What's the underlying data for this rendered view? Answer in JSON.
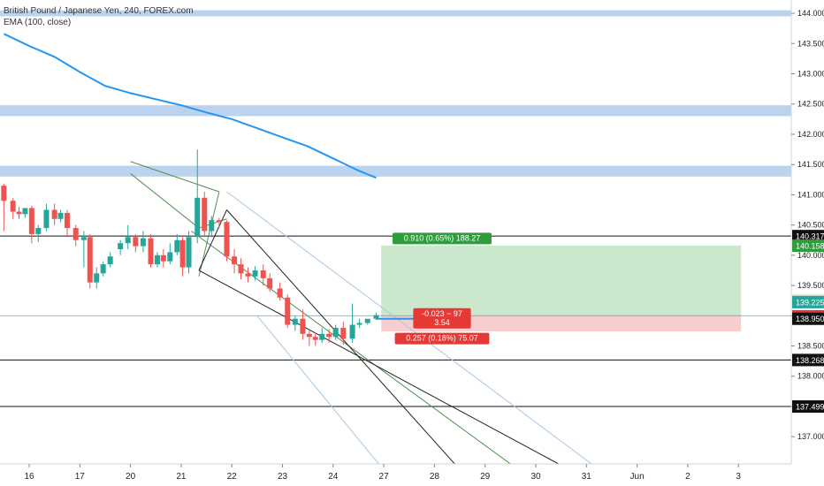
{
  "chart": {
    "symbol_line": "British Pound / Japanese Yen, 240, FOREX.com",
    "indicator_line": "EMA (100, close)"
  },
  "colors": {
    "bull": "#26a69a",
    "bear": "#ef5350",
    "ema": "#2196f3",
    "zone": "#bcd3f0",
    "profit": "#c8e6c9",
    "loss": "#f8caca",
    "channel_dark": "#222222",
    "channel_green": "#4f8f4f",
    "channel_light": "#a9c6e6",
    "axis_text": "#222222"
  },
  "chart_data": {
    "type": "candlestick",
    "title": "British Pound / Japanese Yen, 240, FOREX.com",
    "ylim": [
      136.55,
      144.22
    ],
    "y_ticks": [
      137.0,
      137.5,
      138.0,
      138.5,
      139.0,
      139.5,
      140.0,
      140.5,
      141.0,
      141.5,
      142.0,
      142.5,
      143.0,
      143.5,
      144.0
    ],
    "y_tick_labels": [
      "137.000",
      "137.500",
      "138.000",
      "138.500",
      "139.000",
      "139.500",
      "140.000",
      "140.500",
      "141.000",
      "141.500",
      "142.000",
      "142.500",
      "143.000",
      "143.500",
      "144.000"
    ],
    "x_ticks": [
      {
        "label": "16",
        "x": 0.5
      },
      {
        "label": "17",
        "x": 1.5
      },
      {
        "label": "20",
        "x": 2.5
      },
      {
        "label": "21",
        "x": 3.5
      },
      {
        "label": "22",
        "x": 4.5
      },
      {
        "label": "23",
        "x": 5.5
      },
      {
        "label": "24",
        "x": 6.5
      },
      {
        "label": "27",
        "x": 7.5
      },
      {
        "label": "28",
        "x": 8.5
      },
      {
        "label": "29",
        "x": 9.5
      },
      {
        "label": "30",
        "x": 10.5
      },
      {
        "label": "31",
        "x": 11.5
      },
      {
        "label": "Jun",
        "x": 12.5
      },
      {
        "label": "2",
        "x": 13.5
      },
      {
        "label": "3",
        "x": 14.5
      }
    ],
    "candles": [
      {
        "x": 0.0,
        "o": 141.15,
        "h": 141.18,
        "c": 140.9,
        "l": 140.4
      },
      {
        "x": 0.18,
        "o": 140.9,
        "h": 140.95,
        "c": 140.72,
        "l": 140.6
      },
      {
        "x": 0.3,
        "o": 140.72,
        "h": 140.8,
        "c": 140.68,
        "l": 140.6
      },
      {
        "x": 0.42,
        "o": 140.68,
        "h": 140.75,
        "c": 140.78,
        "l": 140.62
      },
      {
        "x": 0.55,
        "o": 140.78,
        "h": 140.82,
        "c": 140.35,
        "l": 140.2
      },
      {
        "x": 0.68,
        "o": 140.35,
        "h": 140.5,
        "c": 140.45,
        "l": 140.22
      },
      {
        "x": 0.84,
        "o": 140.45,
        "h": 140.85,
        "c": 140.75,
        "l": 140.4
      },
      {
        "x": 1.0,
        "o": 140.75,
        "h": 140.85,
        "c": 140.6,
        "l": 140.5
      },
      {
        "x": 1.12,
        "o": 140.6,
        "h": 140.75,
        "c": 140.7,
        "l": 140.55
      },
      {
        "x": 1.25,
        "o": 140.7,
        "h": 140.75,
        "c": 140.45,
        "l": 140.3
      },
      {
        "x": 1.42,
        "o": 140.45,
        "h": 140.5,
        "c": 140.25,
        "l": 140.15
      },
      {
        "x": 1.58,
        "o": 140.25,
        "h": 140.4,
        "c": 140.3,
        "l": 139.8
      },
      {
        "x": 1.7,
        "o": 140.3,
        "h": 140.35,
        "c": 139.55,
        "l": 139.45
      },
      {
        "x": 1.83,
        "o": 139.55,
        "h": 139.8,
        "c": 139.7,
        "l": 139.45
      },
      {
        "x": 1.96,
        "o": 139.7,
        "h": 139.9,
        "c": 139.85,
        "l": 139.65
      },
      {
        "x": 2.1,
        "o": 139.85,
        "h": 140.05,
        "c": 139.98,
        "l": 139.8
      },
      {
        "x": 2.3,
        "o": 140.1,
        "h": 140.25,
        "c": 140.2,
        "l": 140.0
      },
      {
        "x": 2.45,
        "o": 140.2,
        "h": 140.5,
        "c": 140.3,
        "l": 140.1
      },
      {
        "x": 2.6,
        "o": 140.3,
        "h": 140.35,
        "c": 140.15,
        "l": 140.05
      },
      {
        "x": 2.75,
        "o": 140.15,
        "h": 140.4,
        "c": 140.28,
        "l": 140.05
      },
      {
        "x": 2.9,
        "o": 140.28,
        "h": 140.35,
        "c": 139.85,
        "l": 139.8
      },
      {
        "x": 3.03,
        "o": 139.85,
        "h": 140.05,
        "c": 140.0,
        "l": 139.8
      },
      {
        "x": 3.15,
        "o": 140.0,
        "h": 140.1,
        "c": 139.9,
        "l": 139.8
      },
      {
        "x": 3.28,
        "o": 139.9,
        "h": 140.2,
        "c": 140.05,
        "l": 139.85
      },
      {
        "x": 3.42,
        "o": 140.05,
        "h": 140.35,
        "c": 140.25,
        "l": 140.0
      },
      {
        "x": 3.53,
        "o": 140.25,
        "h": 140.3,
        "c": 139.8,
        "l": 139.65
      },
      {
        "x": 3.65,
        "o": 139.8,
        "h": 140.4,
        "c": 140.3,
        "l": 139.7
      },
      {
        "x": 3.82,
        "o": 140.3,
        "h": 141.75,
        "c": 140.95,
        "l": 140.2
      },
      {
        "x": 3.96,
        "o": 140.95,
        "h": 141.05,
        "c": 140.4,
        "l": 140.3
      },
      {
        "x": 4.1,
        "o": 140.4,
        "h": 140.65,
        "c": 140.58,
        "l": 140.3
      },
      {
        "x": 4.25,
        "o": 140.58,
        "h": 140.62,
        "c": 140.55,
        "l": 140.45
      },
      {
        "x": 4.4,
        "o": 140.55,
        "h": 140.58,
        "c": 139.98,
        "l": 139.9
      },
      {
        "x": 4.55,
        "o": 139.98,
        "h": 140.1,
        "c": 139.85,
        "l": 139.7
      },
      {
        "x": 4.68,
        "o": 139.85,
        "h": 139.95,
        "c": 139.7,
        "l": 139.6
      },
      {
        "x": 4.82,
        "o": 139.7,
        "h": 139.8,
        "c": 139.65,
        "l": 139.55
      },
      {
        "x": 4.96,
        "o": 139.65,
        "h": 139.82,
        "c": 139.75,
        "l": 139.58
      },
      {
        "x": 5.12,
        "o": 139.75,
        "h": 139.85,
        "c": 139.62,
        "l": 139.5
      },
      {
        "x": 5.25,
        "o": 139.62,
        "h": 139.7,
        "c": 139.45,
        "l": 139.4
      },
      {
        "x": 5.45,
        "o": 139.45,
        "h": 139.55,
        "c": 139.3,
        "l": 139.25
      },
      {
        "x": 5.6,
        "o": 139.3,
        "h": 139.35,
        "c": 138.85,
        "l": 138.8
      },
      {
        "x": 5.75,
        "o": 138.85,
        "h": 139.0,
        "c": 138.95,
        "l": 138.75
      },
      {
        "x": 5.9,
        "o": 138.95,
        "h": 139.1,
        "c": 138.7,
        "l": 138.6
      },
      {
        "x": 6.03,
        "o": 138.7,
        "h": 138.75,
        "c": 138.65,
        "l": 138.5
      },
      {
        "x": 6.15,
        "o": 138.65,
        "h": 138.72,
        "c": 138.6,
        "l": 138.5
      },
      {
        "x": 6.28,
        "o": 138.6,
        "h": 138.8,
        "c": 138.7,
        "l": 138.55
      },
      {
        "x": 6.42,
        "o": 138.7,
        "h": 138.78,
        "c": 138.65,
        "l": 138.55
      },
      {
        "x": 6.55,
        "o": 138.65,
        "h": 138.85,
        "c": 138.8,
        "l": 138.6
      },
      {
        "x": 6.7,
        "o": 138.8,
        "h": 138.9,
        "c": 138.62,
        "l": 138.52
      },
      {
        "x": 6.88,
        "o": 138.62,
        "h": 139.2,
        "c": 138.85,
        "l": 138.55
      },
      {
        "x": 7.02,
        "o": 138.85,
        "h": 138.95,
        "c": 138.88,
        "l": 138.8
      },
      {
        "x": 7.18,
        "o": 138.88,
        "h": 138.92,
        "c": 138.95,
        "l": 138.85
      },
      {
        "x": 7.35,
        "o": 138.95,
        "h": 139.05,
        "c": 139.01,
        "l": 138.93
      }
    ],
    "ema": {
      "name": "EMA (100, close)",
      "x": [
        0.0,
        0.5,
        1.0,
        1.5,
        2.0,
        2.5,
        3.0,
        3.5,
        4.0,
        4.5,
        5.0,
        5.5,
        6.0,
        6.5,
        7.0,
        7.35
      ],
      "y": [
        143.66,
        143.46,
        143.28,
        143.03,
        142.8,
        142.68,
        142.58,
        142.48,
        142.36,
        142.25,
        142.1,
        141.95,
        141.8,
        141.6,
        141.4,
        141.28
      ]
    },
    "zones": [
      {
        "from": 143.95,
        "to": 144.05
      },
      {
        "from": 142.3,
        "to": 142.48
      },
      {
        "from": 141.3,
        "to": 141.48
      }
    ],
    "horizontal_levels": [
      {
        "value": 140.317,
        "label": "140.317"
      },
      {
        "value": 138.268,
        "label": "138.268"
      },
      {
        "value": 137.499,
        "label": "137.499"
      }
    ],
    "price_line": 139.0,
    "position": {
      "x_start": 7.45,
      "x_end": 14.55,
      "entry": 139.0,
      "target": 140.16,
      "stop": 138.74,
      "target_label": "0.910 (0.65%) 188.27",
      "center_label_1": "-0.023 ~ 97",
      "center_label_2": "3.54",
      "stop_label": "0.257 (0.18%) 75.07"
    },
    "price_tags": [
      {
        "value": 140.317,
        "label": "140.317",
        "bg": "#111111",
        "fg": "#ffffff"
      },
      {
        "value": 140.158,
        "label": "140.158",
        "bg": "#2e9e3c",
        "fg": "#ffffff"
      },
      {
        "value": 139.248,
        "label": "139.248",
        "bg": "#c8e6c9",
        "fg": "#1b5e20"
      },
      {
        "value": 139.225,
        "label": "139.225",
        "bg": "#26a69a",
        "fg": "#ffffff"
      },
      {
        "value": 138.991,
        "label": "138.991",
        "bg": "#e53935",
        "fg": "#ffffff"
      },
      {
        "value": 138.95,
        "label": "138.950",
        "bg": "#111111",
        "fg": "#ffffff"
      },
      {
        "value": 138.268,
        "label": "138.268",
        "bg": "#111111",
        "fg": "#ffffff"
      },
      {
        "value": 137.499,
        "label": "137.499",
        "bg": "#111111",
        "fg": "#ffffff"
      }
    ],
    "trendlines": [
      {
        "style": "green",
        "x1": 2.5,
        "y1": 141.55,
        "x2": 4.25,
        "y2": 141.05
      },
      {
        "style": "green",
        "x1": 2.5,
        "y1": 141.35,
        "x2": 3.85,
        "y2": 140.45
      },
      {
        "style": "green",
        "x1": 4.25,
        "y1": 141.05,
        "x2": 3.85,
        "y2": 139.65
      },
      {
        "style": "green",
        "x1": 3.85,
        "y1": 140.45,
        "x2": 4.4,
        "y2": 140.6
      },
      {
        "style": "green",
        "x1": 3.7,
        "y1": 140.4,
        "x2": 10.0,
        "y2": 136.55
      },
      {
        "style": "dark",
        "x1": 4.4,
        "y1": 140.75,
        "x2": 8.9,
        "y2": 136.55
      },
      {
        "style": "dark",
        "x1": 4.4,
        "y1": 140.75,
        "x2": 3.85,
        "y2": 139.75
      },
      {
        "style": "dark",
        "x1": 3.85,
        "y1": 139.75,
        "x2": 10.95,
        "y2": 136.55
      },
      {
        "style": "light",
        "x1": 4.4,
        "y1": 141.05,
        "x2": 11.6,
        "y2": 136.55
      },
      {
        "style": "light",
        "x1": 5.0,
        "y1": 139.0,
        "x2": 7.4,
        "y2": 136.55
      },
      {
        "style": "blue",
        "x1": 7.35,
        "y1": 138.95,
        "x2": 8.25,
        "y2": 138.95
      }
    ]
  }
}
